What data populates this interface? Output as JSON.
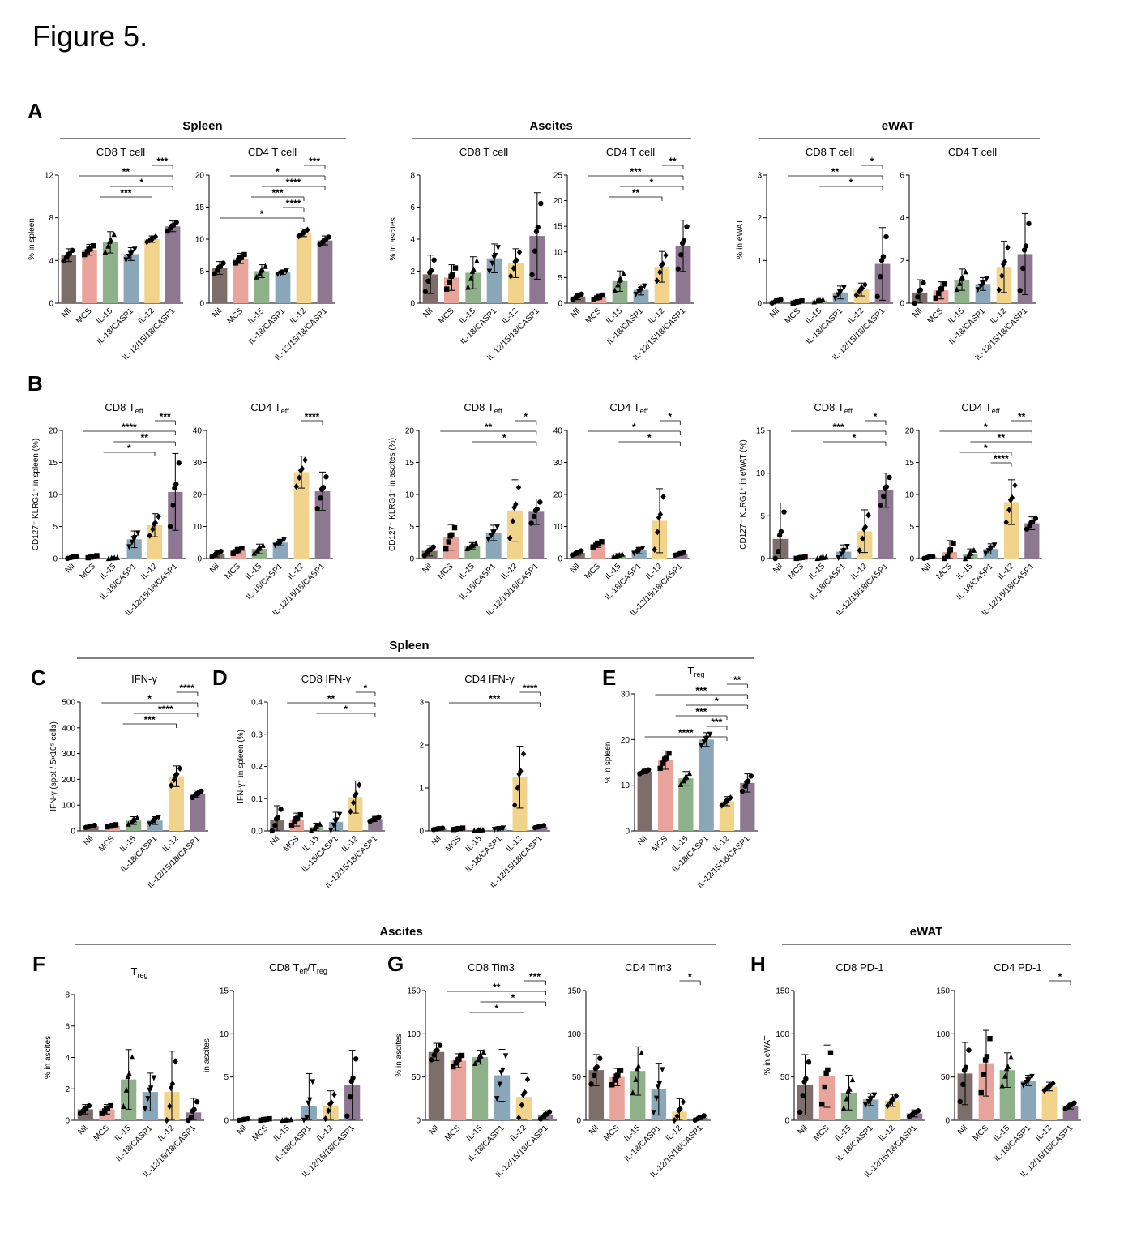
{
  "figure_title": "Figure 5.",
  "colors": {
    "Nil": "#7d6e6b",
    "MCS": "#e8a39b",
    "IL-15": "#8fb189",
    "IL-18/CASP1": "#8aa7ba",
    "IL-12": "#f2d38c",
    "IL-12/15/18/CASP1": "#8d7791"
  },
  "panel_labels": [
    "A",
    "B",
    "C",
    "D",
    "E",
    "F",
    "G",
    "H"
  ],
  "group_headers": [
    {
      "id": "A-spleen",
      "text": "Spleen"
    },
    {
      "id": "A-ascites",
      "text": "Ascites"
    },
    {
      "id": "A-ewat",
      "text": "eWAT"
    },
    {
      "id": "CDE-spleen",
      "text": "Spleen"
    },
    {
      "id": "FG-ascites",
      "text": "Ascites"
    },
    {
      "id": "H-ewat",
      "text": "eWAT"
    }
  ],
  "chart_data": [
    {
      "id": "A1",
      "type": "bar",
      "title": "CD8 T cell",
      "ylabel": "% in spleen",
      "ylim": [
        0,
        12
      ],
      "yticks": [
        0,
        4,
        8,
        12
      ],
      "categories": [
        "Nil",
        "MCS",
        "IL-15",
        "IL-18/CASP1",
        "IL-12",
        "IL-12/15/18/CASP1"
      ],
      "values": [
        4.5,
        5.0,
        5.7,
        4.6,
        6.0,
        7.2
      ],
      "errors": [
        0.6,
        0.5,
        1.0,
        0.6,
        0.3,
        0.5
      ],
      "markers": [
        "circle",
        "square",
        "triangle",
        "tri-down",
        "diamond",
        "circle"
      ],
      "significance": [
        "***",
        "**",
        "*",
        "***"
      ]
    },
    {
      "id": "A2",
      "type": "bar",
      "title": "CD4 T cell",
      "ylabel": "",
      "ylim": [
        0,
        20
      ],
      "yticks": [
        0,
        5,
        10,
        15,
        20
      ],
      "categories": [
        "Nil",
        "MCS",
        "IL-15",
        "IL-18/CASP1",
        "IL-12",
        "IL-12/15/18/CASP1"
      ],
      "values": [
        5.5,
        7.0,
        5.0,
        4.8,
        11.0,
        9.8
      ],
      "errors": [
        1.0,
        0.8,
        1.0,
        0.3,
        0.6,
        0.7
      ],
      "markers": [
        "circle",
        "square",
        "triangle",
        "tri-down",
        "diamond",
        "circle"
      ],
      "significance": [
        "***",
        "*",
        "****",
        "***",
        "****",
        "*"
      ]
    },
    {
      "id": "A3",
      "type": "bar",
      "title": "CD8 T cell",
      "ylabel": "% in ascites",
      "ylim": [
        0,
        8
      ],
      "yticks": [
        0,
        2,
        4,
        6,
        8
      ],
      "categories": [
        "Nil",
        "MCS",
        "IL-15",
        "IL-18/CASP1",
        "IL-12",
        "IL-12/15/18/CASP1"
      ],
      "values": [
        1.8,
        1.6,
        1.9,
        2.8,
        2.5,
        4.2
      ],
      "errors": [
        1.2,
        0.8,
        1.0,
        0.9,
        0.9,
        2.7
      ],
      "markers": [
        "circle",
        "square",
        "triangle",
        "tri-down",
        "diamond",
        "circle"
      ],
      "significance": []
    },
    {
      "id": "A4",
      "type": "bar",
      "title": "CD4 T cell",
      "ylabel": "",
      "ylim": [
        0,
        25
      ],
      "yticks": [
        0,
        5,
        10,
        15,
        20,
        25
      ],
      "categories": [
        "Nil",
        "MCS",
        "IL-15",
        "IL-18/CASP1",
        "IL-12",
        "IL-12/15/18/CASP1"
      ],
      "values": [
        1.3,
        1.2,
        4.3,
        2.6,
        7.1,
        11.2
      ],
      "errors": [
        0.6,
        0.5,
        2.0,
        1.0,
        3.0,
        5.0
      ],
      "markers": [
        "circle",
        "square",
        "triangle",
        "tri-down",
        "diamond",
        "circle"
      ],
      "significance": [
        "**",
        "***",
        "*",
        "**"
      ]
    },
    {
      "id": "A5",
      "type": "bar",
      "title": "CD8 T cell",
      "ylabel": "% in eWAT",
      "ylim": [
        0,
        3
      ],
      "yticks": [
        0,
        1,
        2,
        3
      ],
      "categories": [
        "Nil",
        "MCS",
        "IL-15",
        "IL-18/CASP1",
        "IL-12",
        "IL-12/15/18/CASP1"
      ],
      "values": [
        0.05,
        0.03,
        0.06,
        0.25,
        0.32,
        0.92
      ],
      "errors": [
        0.05,
        0.03,
        0.03,
        0.15,
        0.15,
        0.85
      ],
      "markers": [
        "circle",
        "square",
        "triangle",
        "tri-down",
        "diamond",
        "circle"
      ],
      "significance": [
        "*",
        "**",
        "*"
      ]
    },
    {
      "id": "A6",
      "type": "bar",
      "title": "CD4 T cell",
      "ylabel": "",
      "ylim": [
        0,
        6
      ],
      "yticks": [
        0,
        2,
        4,
        6
      ],
      "categories": [
        "Nil",
        "MCS",
        "IL-15",
        "IL-18/CASP1",
        "IL-12",
        "IL-12/15/18/CASP1"
      ],
      "values": [
        0.5,
        0.6,
        1.1,
        0.9,
        1.7,
        2.3
      ],
      "errors": [
        0.6,
        0.4,
        0.5,
        0.3,
        1.2,
        1.9
      ],
      "markers": [
        "circle",
        "square",
        "triangle",
        "tri-down",
        "diamond",
        "circle"
      ],
      "significance": []
    },
    {
      "id": "B1",
      "type": "bar",
      "title": "CD8 Teff",
      "ylabel": "CD127⁻ KLRG1⁻ in spleen (%)",
      "ylim": [
        0,
        20
      ],
      "yticks": [
        0,
        5,
        10,
        15,
        20
      ],
      "categories": [
        "Nil",
        "MCS",
        "IL-15",
        "IL-18/CASP1",
        "IL-12",
        "IL-12/15/18/CASP1"
      ],
      "values": [
        0.2,
        0.3,
        0.1,
        3.0,
        5.2,
        10.4
      ],
      "errors": [
        0.2,
        0.2,
        0.1,
        1.3,
        1.8,
        6.0
      ],
      "markers": [
        "circle",
        "square",
        "triangle",
        "tri-down",
        "diamond",
        "circle"
      ],
      "significance": [
        "***",
        "****",
        "**",
        "*"
      ]
    },
    {
      "id": "B2",
      "type": "bar",
      "title": "CD4 Teff",
      "ylabel": "",
      "ylim": [
        0,
        40
      ],
      "yticks": [
        0,
        10,
        20,
        30,
        40
      ],
      "categories": [
        "Nil",
        "MCS",
        "IL-15",
        "IL-18/CASP1",
        "IL-12",
        "IL-12/15/18/CASP1"
      ],
      "values": [
        1.5,
        2.5,
        3.0,
        5.0,
        27.0,
        21.0
      ],
      "errors": [
        1.0,
        1.0,
        1.5,
        1.0,
        5.0,
        6.0
      ],
      "markers": [
        "circle",
        "square",
        "triangle",
        "tri-down",
        "diamond",
        "circle"
      ],
      "significance": [
        "****"
      ]
    },
    {
      "id": "B3",
      "type": "bar",
      "title": "CD8 Teff",
      "ylabel": "CD127⁻ KLRG1⁻ in ascites (%)",
      "ylim": [
        0,
        20
      ],
      "yticks": [
        0,
        5,
        10,
        15,
        20
      ],
      "categories": [
        "Nil",
        "MCS",
        "IL-15",
        "IL-18/CASP1",
        "IL-12",
        "IL-12/15/18/CASP1"
      ],
      "values": [
        1.2,
        3.3,
        2.0,
        4.0,
        7.5,
        7.3
      ],
      "errors": [
        0.8,
        2.0,
        0.5,
        1.2,
        4.8,
        2.0
      ],
      "markers": [
        "circle",
        "square",
        "triangle",
        "tri-down",
        "diamond",
        "circle"
      ],
      "significance": [
        "*",
        "**",
        "*"
      ]
    },
    {
      "id": "B4",
      "type": "bar",
      "title": "CD4 Teff",
      "ylabel": "",
      "ylim": [
        0,
        40
      ],
      "yticks": [
        0,
        10,
        20,
        30,
        40
      ],
      "categories": [
        "Nil",
        "MCS",
        "IL-15",
        "IL-18/CASP1",
        "IL-12",
        "IL-12/15/18/CASP1"
      ],
      "values": [
        1.8,
        4.5,
        1.0,
        2.5,
        11.8,
        1.5
      ],
      "errors": [
        0.8,
        1.0,
        0.5,
        1.0,
        10.0,
        0.5
      ],
      "markers": [
        "circle",
        "square",
        "triangle",
        "tri-down",
        "diamond",
        "circle"
      ],
      "significance": [
        "*",
        "*",
        "*"
      ]
    },
    {
      "id": "B5",
      "type": "bar",
      "title": "CD8 Teff",
      "ylabel": "CD127⁻ KLRG1⁺ in eWAT (%)",
      "ylim": [
        0,
        15
      ],
      "yticks": [
        0,
        5,
        10,
        15
      ],
      "categories": [
        "Nil",
        "MCS",
        "IL-15",
        "IL-18/CASP1",
        "IL-12",
        "IL-12/15/18/CASP1"
      ],
      "values": [
        2.3,
        0.1,
        0.1,
        0.8,
        3.2,
        8.0
      ],
      "errors": [
        4.2,
        0.1,
        0.1,
        0.8,
        2.5,
        2.0
      ],
      "markers": [
        "circle",
        "square",
        "triangle",
        "tri-down",
        "diamond",
        "circle"
      ],
      "significance": [
        "*",
        "***",
        "*"
      ]
    },
    {
      "id": "B6",
      "type": "bar",
      "title": "CD4 Teff",
      "ylabel": "",
      "ylim": [
        0,
        20
      ],
      "yticks": [
        0,
        5,
        10,
        15,
        20
      ],
      "categories": [
        "Nil",
        "MCS",
        "IL-15",
        "IL-18/CASP1",
        "IL-12",
        "IL-12/15/18/CASP1"
      ],
      "values": [
        0.2,
        1.0,
        0.7,
        1.5,
        8.8,
        5.5
      ],
      "errors": [
        0.2,
        1.8,
        0.8,
        0.8,
        3.5,
        1.0
      ],
      "markers": [
        "circle",
        "square",
        "triangle",
        "tri-down",
        "diamond",
        "circle"
      ],
      "significance": [
        "**",
        "*",
        "**",
        "*",
        "****"
      ]
    },
    {
      "id": "C",
      "type": "bar",
      "title": "IFN-γ",
      "ylabel": "IFN-γ (spot / 5×10⁵ cells)",
      "ylim": [
        0,
        500
      ],
      "yticks": [
        0,
        100,
        200,
        300,
        400,
        500
      ],
      "categories": [
        "Nil",
        "MCS",
        "IL-15",
        "IL-18/CASP1",
        "IL-12",
        "IL-12/15/18/CASP1"
      ],
      "values": [
        18,
        20,
        40,
        40,
        212,
        143
      ],
      "errors": [
        5,
        5,
        15,
        15,
        40,
        15
      ],
      "markers": [
        "circle",
        "square",
        "triangle",
        "tri-down",
        "diamond",
        "circle"
      ],
      "significance": [
        "****",
        "*",
        "****",
        "***"
      ]
    },
    {
      "id": "D1",
      "type": "bar",
      "title": "CD8 IFN-γ",
      "ylabel": "IFN-γ⁺ in spleen (%)",
      "ylim": [
        0,
        0.4
      ],
      "yticks": [
        0.0,
        0.1,
        0.2,
        0.3,
        0.4
      ],
      "categories": [
        "Nil",
        "MCS",
        "IL-15",
        "IL-18/CASP1",
        "IL-12",
        "IL-12/15/18/CASP1"
      ],
      "values": [
        0.033,
        0.035,
        0.012,
        0.028,
        0.105,
        0.037
      ],
      "errors": [
        0.045,
        0.02,
        0.012,
        0.03,
        0.05,
        0.008
      ],
      "markers": [
        "circle",
        "square",
        "triangle",
        "tri-down",
        "diamond",
        "circle"
      ],
      "significance": [
        "*",
        "**",
        "*"
      ]
    },
    {
      "id": "D2",
      "type": "bar",
      "title": "CD4 IFN-γ",
      "ylabel": "",
      "ylim": [
        0,
        3
      ],
      "yticks": [
        0,
        1,
        2,
        3
      ],
      "categories": [
        "Nil",
        "MCS",
        "IL-15",
        "IL-18/CASP1",
        "IL-12",
        "IL-12/15/18/CASP1"
      ],
      "values": [
        0.05,
        0.05,
        0.02,
        0.05,
        1.25,
        0.1
      ],
      "errors": [
        0.02,
        0.02,
        0.01,
        0.02,
        0.72,
        0.03
      ],
      "markers": [
        "circle",
        "square",
        "triangle",
        "tri-down",
        "diamond",
        "circle"
      ],
      "significance": [
        "****",
        "***"
      ]
    },
    {
      "id": "E",
      "type": "bar",
      "title": "Treg",
      "ylabel": "% in spleen",
      "ylim": [
        0,
        30
      ],
      "yticks": [
        0,
        10,
        20,
        30
      ],
      "categories": [
        "Nil",
        "MCS",
        "IL-15",
        "IL-18/CASP1",
        "IL-12",
        "IL-12/15/18/CASP1"
      ],
      "values": [
        13,
        15.5,
        11.5,
        20,
        6.5,
        10.5
      ],
      "errors": [
        0.5,
        2.0,
        1.5,
        1.5,
        1.0,
        2.0
      ],
      "markers": [
        "circle",
        "square",
        "triangle",
        "tri-down",
        "diamond",
        "circle"
      ],
      "significance": [
        "**",
        "***",
        "*",
        "***",
        "***",
        "****"
      ]
    },
    {
      "id": "F1",
      "type": "bar",
      "title": "Treg",
      "ylabel": "% in ascites",
      "ylim": [
        0,
        8
      ],
      "yticks": [
        0,
        2,
        4,
        6,
        8
      ],
      "categories": [
        "Nil",
        "MCS",
        "IL-15",
        "IL-18/CASP1",
        "IL-12",
        "IL-12/15/18/CASP1"
      ],
      "values": [
        0.7,
        0.7,
        2.6,
        1.8,
        1.8,
        0.5
      ],
      "errors": [
        0.3,
        0.3,
        1.9,
        1.2,
        2.6,
        0.9
      ],
      "markers": [
        "circle",
        "square",
        "triangle",
        "tri-down",
        "diamond",
        "circle"
      ],
      "significance": []
    },
    {
      "id": "F2",
      "type": "bar",
      "title": "CD8 Teff/Treg",
      "ylabel": "in ascites",
      "ylim": [
        0,
        15
      ],
      "yticks": [
        0,
        5,
        10,
        15
      ],
      "categories": [
        "Nil",
        "MCS",
        "IL-15",
        "IL-18/CASP1",
        "IL-12",
        "IL-12/15/18/CASP1"
      ],
      "values": [
        0.1,
        0.1,
        0.05,
        1.6,
        1.7,
        4.1
      ],
      "errors": [
        0.1,
        0.1,
        0.05,
        3.8,
        1.7,
        4.0
      ],
      "markers": [
        "circle",
        "square",
        "triangle",
        "tri-down",
        "diamond",
        "circle"
      ],
      "significance": []
    },
    {
      "id": "G1",
      "type": "bar",
      "title": "CD8 Tim3",
      "ylabel": "% in ascites",
      "ylim": [
        0,
        150
      ],
      "yticks": [
        0,
        50,
        100,
        150
      ],
      "categories": [
        "Nil",
        "MCS",
        "IL-15",
        "IL-18/CASP1",
        "IL-12",
        "IL-12/15/18/CASP1"
      ],
      "values": [
        79,
        69,
        73,
        52,
        27,
        6
      ],
      "errors": [
        10,
        8,
        8,
        30,
        27,
        5
      ],
      "markers": [
        "circle",
        "square",
        "triangle",
        "tri-down",
        "diamond",
        "circle"
      ],
      "significance": [
        "***",
        "**",
        "*",
        "*"
      ]
    },
    {
      "id": "G2",
      "type": "bar",
      "title": "CD4 Tim3",
      "ylabel": "",
      "ylim": [
        0,
        150
      ],
      "yticks": [
        0,
        50,
        100,
        150
      ],
      "categories": [
        "Nil",
        "MCS",
        "IL-15",
        "IL-18/CASP1",
        "IL-12",
        "IL-12/15/18/CASP1"
      ],
      "values": [
        58,
        50,
        57,
        36,
        10,
        3
      ],
      "errors": [
        18,
        10,
        28,
        30,
        15,
        3
      ],
      "markers": [
        "circle",
        "square",
        "triangle",
        "tri-down",
        "diamond",
        "circle"
      ],
      "significance": [
        "*"
      ]
    },
    {
      "id": "H1",
      "type": "bar",
      "title": "CD8 PD-1",
      "ylabel": "% in eWAT",
      "ylim": [
        0,
        150
      ],
      "yticks": [
        0,
        50,
        100,
        150
      ],
      "categories": [
        "Nil",
        "MCS",
        "IL-15",
        "IL-18/CASP1",
        "IL-12",
        "IL-12/15/18/CASP1"
      ],
      "values": [
        41,
        51,
        32,
        24,
        23,
        8
      ],
      "errors": [
        35,
        36,
        20,
        7,
        7,
        4
      ],
      "markers": [
        "circle",
        "square",
        "triangle",
        "tri-down",
        "diamond",
        "circle"
      ],
      "significance": []
    },
    {
      "id": "H2",
      "type": "bar",
      "title": "CD4 PD-1",
      "ylabel": "",
      "ylim": [
        0,
        150
      ],
      "yticks": [
        0,
        50,
        100,
        150
      ],
      "categories": [
        "Nil",
        "MCS",
        "IL-15",
        "IL-18/CASP1",
        "IL-12",
        "IL-12/15/18/CASP1"
      ],
      "values": [
        54,
        66,
        58,
        46,
        39,
        17
      ],
      "errors": [
        36,
        38,
        20,
        6,
        5,
        4
      ],
      "markers": [
        "circle",
        "square",
        "triangle",
        "tri-down",
        "diamond",
        "circle"
      ],
      "significance": [
        "*"
      ]
    }
  ]
}
